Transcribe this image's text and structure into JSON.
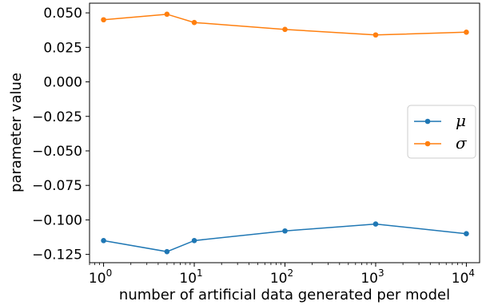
{
  "chart_data": {
    "type": "line",
    "xscale": "log",
    "xlabel": "number of artificial data generated per model",
    "ylabel": "parameter value",
    "xlim": [
      0.7,
      14000
    ],
    "ylim": [
      -0.131,
      0.057
    ],
    "grid": false,
    "legend_position": "center-right",
    "x_ticks": [
      {
        "base": "10",
        "exp": "0",
        "value": 1
      },
      {
        "base": "10",
        "exp": "1",
        "value": 10
      },
      {
        "base": "10",
        "exp": "2",
        "value": 100
      },
      {
        "base": "10",
        "exp": "3",
        "value": 1000
      },
      {
        "base": "10",
        "exp": "4",
        "value": 10000
      }
    ],
    "y_ticks": [
      {
        "label": "0.050",
        "value": 0.05
      },
      {
        "label": "0.025",
        "value": 0.025
      },
      {
        "label": "0.000",
        "value": 0.0
      },
      {
        "label": "−0.025",
        "value": -0.025
      },
      {
        "label": "−0.050",
        "value": -0.05
      },
      {
        "label": "−0.075",
        "value": -0.075
      },
      {
        "label": "−0.100",
        "value": -0.1
      },
      {
        "label": "−0.125",
        "value": -0.125
      }
    ],
    "x": [
      1,
      5,
      10,
      100,
      1000,
      10000
    ],
    "series": [
      {
        "name": "μ",
        "color": "#1f77b4",
        "values": [
          -0.115,
          -0.123,
          -0.115,
          -0.108,
          -0.103,
          -0.11
        ]
      },
      {
        "name": "σ",
        "color": "#ff7f0e",
        "values": [
          0.045,
          0.049,
          0.043,
          0.038,
          0.034,
          0.036
        ]
      }
    ]
  }
}
